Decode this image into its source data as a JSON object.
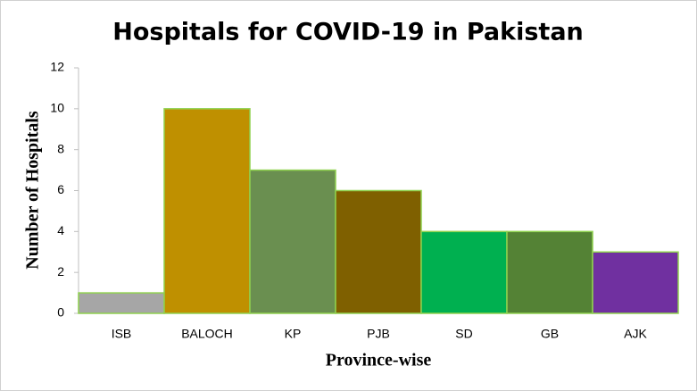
{
  "chart_data": {
    "type": "bar",
    "title": "Hospitals for COVID-19 in Pakistan",
    "x_label": "Province-wise",
    "y_label": "Number of Hospitals",
    "categories": [
      "ISB",
      "BALOCH",
      "KP",
      "PJB",
      "SD",
      "GB",
      "AJK"
    ],
    "values": [
      1,
      10,
      7,
      6,
      4,
      4,
      3
    ],
    "colors": [
      "#a6a6a6",
      "#bf9000",
      "#6a8f50",
      "#7f6000",
      "#00b050",
      "#548235",
      "#7030a0"
    ],
    "ylim": [
      0,
      12
    ],
    "yticks": [
      0,
      2,
      4,
      6,
      8,
      10,
      12
    ],
    "grid": false
  }
}
